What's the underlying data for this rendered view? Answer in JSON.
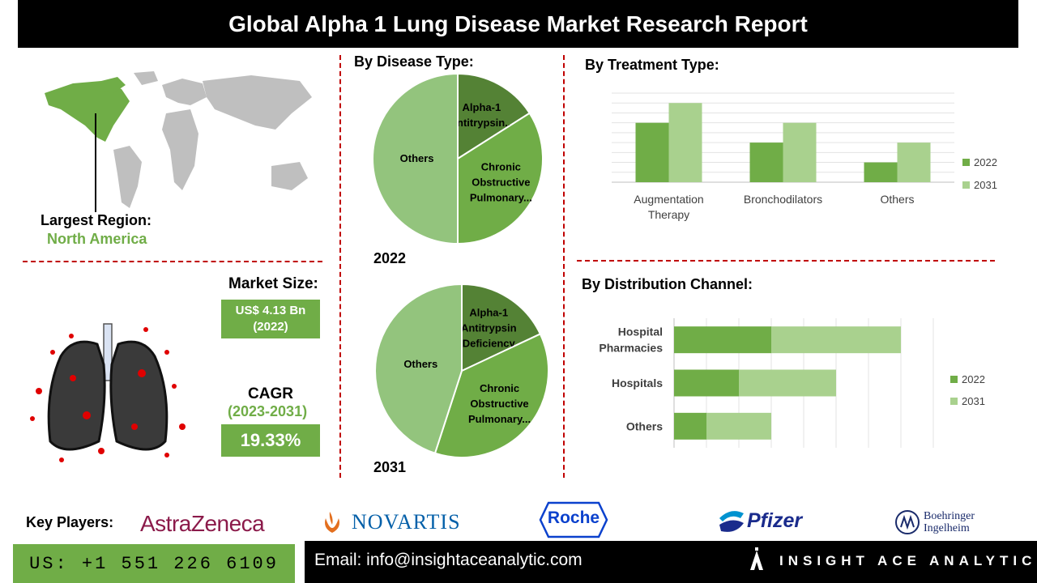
{
  "title": "Global Alpha 1 Lung Disease Market Research Report",
  "region": {
    "label": "Largest Region:",
    "value": "North America"
  },
  "market_size": {
    "label": "Market Size:",
    "value_line1": "US$ 4.13 Bn",
    "value_line2": "(2022)"
  },
  "cagr": {
    "label": "CAGR",
    "period": "(2023-2031)",
    "value": "19.33%"
  },
  "disease_section": {
    "title": "By Disease Type:",
    "year1": "2022",
    "year2": "2031"
  },
  "treatment_section": {
    "title": "By Treatment Type:"
  },
  "distribution_section": {
    "title": "By Distribution Channel:"
  },
  "key_players": {
    "label": "Key Players:",
    "companies": [
      "AstraZeneca",
      "NOVARTIS",
      "Roche",
      "Pfizer",
      "Boehringer",
      "Ingelheim"
    ]
  },
  "contact": {
    "phone": "US: +1 551 226 6109",
    "email": "Email: info@insightaceanalytic.com",
    "brand": "INSIGHT ACE ANALYTIC"
  },
  "colors": {
    "dark_green": "#548235",
    "mid_green": "#70ad47",
    "light_green": "#a9d18e",
    "pie_light": "#93c47d",
    "red_dash": "#c00000"
  },
  "chart_data": [
    {
      "type": "pie",
      "year": "2022",
      "categories": [
        "Alpha-1 Antitrypsin...",
        "Chronic Obstructive Pulmonary...",
        "Others"
      ],
      "values": [
        16,
        34,
        50
      ]
    },
    {
      "type": "pie",
      "year": "2031",
      "categories": [
        "Alpha-1 Antitrypsin Deficiency",
        "Chronic Obstructive Pulmonary...",
        "Others"
      ],
      "values": [
        18,
        37,
        45
      ]
    },
    {
      "type": "bar",
      "categories": [
        "Augmentation Therapy",
        "Bronchodilators",
        "Others"
      ],
      "series": [
        {
          "name": "2022",
          "values": [
            3,
            2,
            1
          ]
        },
        {
          "name": "2031",
          "values": [
            4,
            3,
            2
          ]
        }
      ],
      "ylim": [
        0,
        4.5
      ],
      "grid": true,
      "legend": "right"
    },
    {
      "type": "bar",
      "orientation": "horizontal",
      "stacked": true,
      "categories": [
        "Hospital Pharmacies",
        "Hospitals",
        "Others"
      ],
      "series": [
        {
          "name": "2022",
          "values": [
            3,
            2,
            1
          ]
        },
        {
          "name": "2031",
          "values": [
            4,
            3,
            2
          ]
        }
      ],
      "xlim": [
        0,
        8
      ],
      "grid": true,
      "legend": "right"
    }
  ]
}
